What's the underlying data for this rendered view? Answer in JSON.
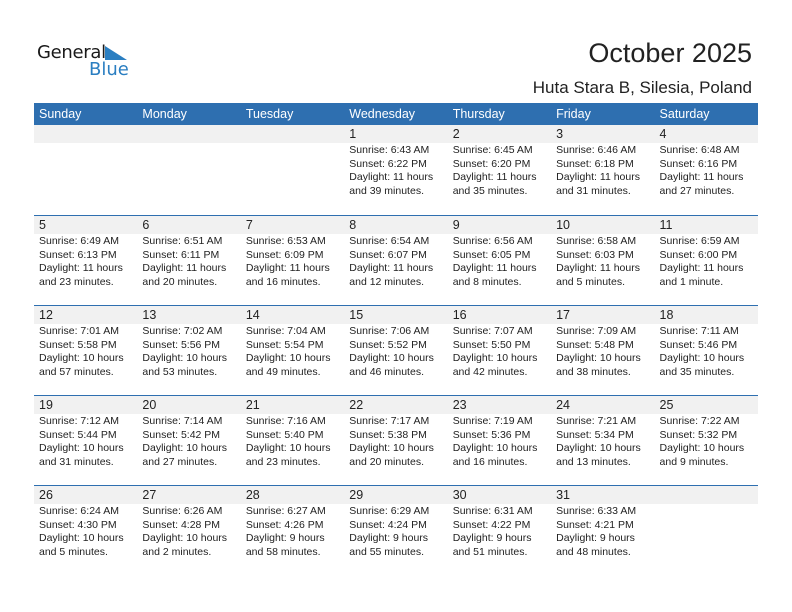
{
  "logo": {
    "word1": "General",
    "word2": "Blue"
  },
  "title": "October 2025",
  "location": "Huta Stara B, Silesia, Poland",
  "colors": {
    "header": "#2e6fb0",
    "band": "#f1f1f1",
    "logo_blue": "#2a7ec1"
  },
  "weekdays": [
    "Sunday",
    "Monday",
    "Tuesday",
    "Wednesday",
    "Thursday",
    "Friday",
    "Saturday"
  ],
  "weeks": [
    [
      null,
      null,
      null,
      {
        "day": "1",
        "sunrise": "Sunrise: 6:43 AM",
        "sunset": "Sunset: 6:22 PM",
        "daylight1": "Daylight: 11 hours",
        "daylight2": "and 39 minutes."
      },
      {
        "day": "2",
        "sunrise": "Sunrise: 6:45 AM",
        "sunset": "Sunset: 6:20 PM",
        "daylight1": "Daylight: 11 hours",
        "daylight2": "and 35 minutes."
      },
      {
        "day": "3",
        "sunrise": "Sunrise: 6:46 AM",
        "sunset": "Sunset: 6:18 PM",
        "daylight1": "Daylight: 11 hours",
        "daylight2": "and 31 minutes."
      },
      {
        "day": "4",
        "sunrise": "Sunrise: 6:48 AM",
        "sunset": "Sunset: 6:16 PM",
        "daylight1": "Daylight: 11 hours",
        "daylight2": "and 27 minutes."
      }
    ],
    [
      {
        "day": "5",
        "sunrise": "Sunrise: 6:49 AM",
        "sunset": "Sunset: 6:13 PM",
        "daylight1": "Daylight: 11 hours",
        "daylight2": "and 23 minutes."
      },
      {
        "day": "6",
        "sunrise": "Sunrise: 6:51 AM",
        "sunset": "Sunset: 6:11 PM",
        "daylight1": "Daylight: 11 hours",
        "daylight2": "and 20 minutes."
      },
      {
        "day": "7",
        "sunrise": "Sunrise: 6:53 AM",
        "sunset": "Sunset: 6:09 PM",
        "daylight1": "Daylight: 11 hours",
        "daylight2": "and 16 minutes."
      },
      {
        "day": "8",
        "sunrise": "Sunrise: 6:54 AM",
        "sunset": "Sunset: 6:07 PM",
        "daylight1": "Daylight: 11 hours",
        "daylight2": "and 12 minutes."
      },
      {
        "day": "9",
        "sunrise": "Sunrise: 6:56 AM",
        "sunset": "Sunset: 6:05 PM",
        "daylight1": "Daylight: 11 hours",
        "daylight2": "and 8 minutes."
      },
      {
        "day": "10",
        "sunrise": "Sunrise: 6:58 AM",
        "sunset": "Sunset: 6:03 PM",
        "daylight1": "Daylight: 11 hours",
        "daylight2": "and 5 minutes."
      },
      {
        "day": "11",
        "sunrise": "Sunrise: 6:59 AM",
        "sunset": "Sunset: 6:00 PM",
        "daylight1": "Daylight: 11 hours",
        "daylight2": "and 1 minute."
      }
    ],
    [
      {
        "day": "12",
        "sunrise": "Sunrise: 7:01 AM",
        "sunset": "Sunset: 5:58 PM",
        "daylight1": "Daylight: 10 hours",
        "daylight2": "and 57 minutes."
      },
      {
        "day": "13",
        "sunrise": "Sunrise: 7:02 AM",
        "sunset": "Sunset: 5:56 PM",
        "daylight1": "Daylight: 10 hours",
        "daylight2": "and 53 minutes."
      },
      {
        "day": "14",
        "sunrise": "Sunrise: 7:04 AM",
        "sunset": "Sunset: 5:54 PM",
        "daylight1": "Daylight: 10 hours",
        "daylight2": "and 49 minutes."
      },
      {
        "day": "15",
        "sunrise": "Sunrise: 7:06 AM",
        "sunset": "Sunset: 5:52 PM",
        "daylight1": "Daylight: 10 hours",
        "daylight2": "and 46 minutes."
      },
      {
        "day": "16",
        "sunrise": "Sunrise: 7:07 AM",
        "sunset": "Sunset: 5:50 PM",
        "daylight1": "Daylight: 10 hours",
        "daylight2": "and 42 minutes."
      },
      {
        "day": "17",
        "sunrise": "Sunrise: 7:09 AM",
        "sunset": "Sunset: 5:48 PM",
        "daylight1": "Daylight: 10 hours",
        "daylight2": "and 38 minutes."
      },
      {
        "day": "18",
        "sunrise": "Sunrise: 7:11 AM",
        "sunset": "Sunset: 5:46 PM",
        "daylight1": "Daylight: 10 hours",
        "daylight2": "and 35 minutes."
      }
    ],
    [
      {
        "day": "19",
        "sunrise": "Sunrise: 7:12 AM",
        "sunset": "Sunset: 5:44 PM",
        "daylight1": "Daylight: 10 hours",
        "daylight2": "and 31 minutes."
      },
      {
        "day": "20",
        "sunrise": "Sunrise: 7:14 AM",
        "sunset": "Sunset: 5:42 PM",
        "daylight1": "Daylight: 10 hours",
        "daylight2": "and 27 minutes."
      },
      {
        "day": "21",
        "sunrise": "Sunrise: 7:16 AM",
        "sunset": "Sunset: 5:40 PM",
        "daylight1": "Daylight: 10 hours",
        "daylight2": "and 23 minutes."
      },
      {
        "day": "22",
        "sunrise": "Sunrise: 7:17 AM",
        "sunset": "Sunset: 5:38 PM",
        "daylight1": "Daylight: 10 hours",
        "daylight2": "and 20 minutes."
      },
      {
        "day": "23",
        "sunrise": "Sunrise: 7:19 AM",
        "sunset": "Sunset: 5:36 PM",
        "daylight1": "Daylight: 10 hours",
        "daylight2": "and 16 minutes."
      },
      {
        "day": "24",
        "sunrise": "Sunrise: 7:21 AM",
        "sunset": "Sunset: 5:34 PM",
        "daylight1": "Daylight: 10 hours",
        "daylight2": "and 13 minutes."
      },
      {
        "day": "25",
        "sunrise": "Sunrise: 7:22 AM",
        "sunset": "Sunset: 5:32 PM",
        "daylight1": "Daylight: 10 hours",
        "daylight2": "and 9 minutes."
      }
    ],
    [
      {
        "day": "26",
        "sunrise": "Sunrise: 6:24 AM",
        "sunset": "Sunset: 4:30 PM",
        "daylight1": "Daylight: 10 hours",
        "daylight2": "and 5 minutes."
      },
      {
        "day": "27",
        "sunrise": "Sunrise: 6:26 AM",
        "sunset": "Sunset: 4:28 PM",
        "daylight1": "Daylight: 10 hours",
        "daylight2": "and 2 minutes."
      },
      {
        "day": "28",
        "sunrise": "Sunrise: 6:27 AM",
        "sunset": "Sunset: 4:26 PM",
        "daylight1": "Daylight: 9 hours",
        "daylight2": "and 58 minutes."
      },
      {
        "day": "29",
        "sunrise": "Sunrise: 6:29 AM",
        "sunset": "Sunset: 4:24 PM",
        "daylight1": "Daylight: 9 hours",
        "daylight2": "and 55 minutes."
      },
      {
        "day": "30",
        "sunrise": "Sunrise: 6:31 AM",
        "sunset": "Sunset: 4:22 PM",
        "daylight1": "Daylight: 9 hours",
        "daylight2": "and 51 minutes."
      },
      {
        "day": "31",
        "sunrise": "Sunrise: 6:33 AM",
        "sunset": "Sunset: 4:21 PM",
        "daylight1": "Daylight: 9 hours",
        "daylight2": "and 48 minutes."
      },
      null
    ]
  ]
}
